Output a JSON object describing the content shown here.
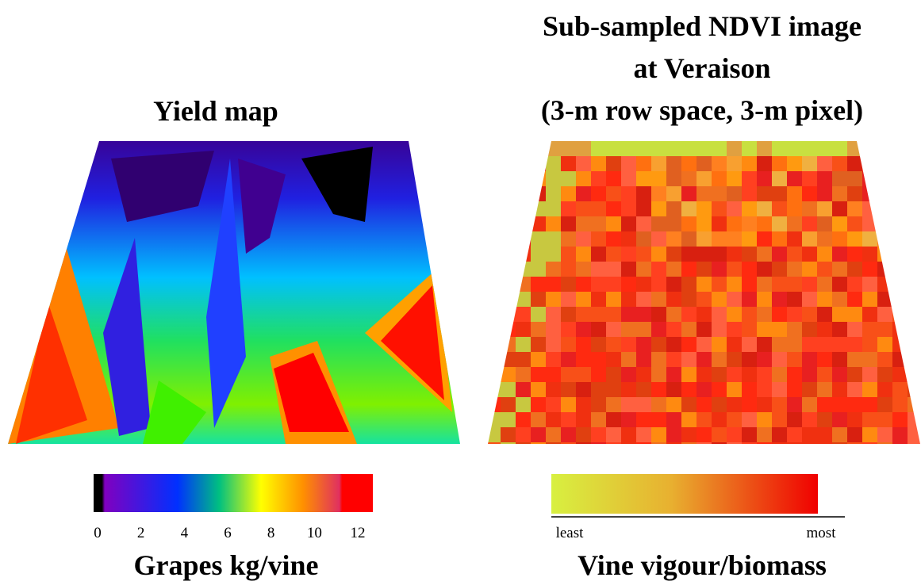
{
  "left_panel": {
    "title": "Yield map",
    "scale": {
      "ticks": [
        0,
        2,
        4,
        6,
        8,
        10,
        12
      ]
    },
    "label": "Grapes  kg/vine"
  },
  "right_panel": {
    "title_lines": [
      "Sub-sampled NDVI image",
      "at Veraison",
      "(3-m row space, 3-m pixel)"
    ],
    "scale": {
      "low_label": "least",
      "high_label": "most"
    },
    "label": "Vine vigour/biomass"
  }
}
